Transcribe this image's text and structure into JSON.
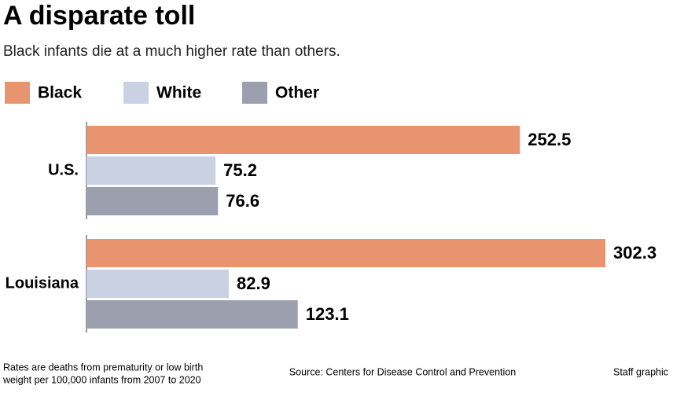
{
  "chart_data": {
    "type": "hbar",
    "title": "A disparate toll",
    "subtitle": "Black infants die at a much higher rate than others.",
    "categories": [
      "U.S.",
      "Louisiana"
    ],
    "series": [
      {
        "name": "Black",
        "color": "#e8956f",
        "values": [
          252.5,
          302.3
        ]
      },
      {
        "name": "White",
        "color": "#c9d1e3",
        "values": [
          75.2,
          82.9
        ]
      },
      {
        "name": "Other",
        "color": "#9c9fad",
        "values": [
          76.6,
          123.1
        ]
      }
    ],
    "note": [
      "Rates are deaths from prematurity or low birth",
      "weight per 100,000 infants from 2007 to 2020"
    ],
    "source": "Source: Centers for Disease Control and Prevention",
    "credit": "Staff graphic"
  }
}
